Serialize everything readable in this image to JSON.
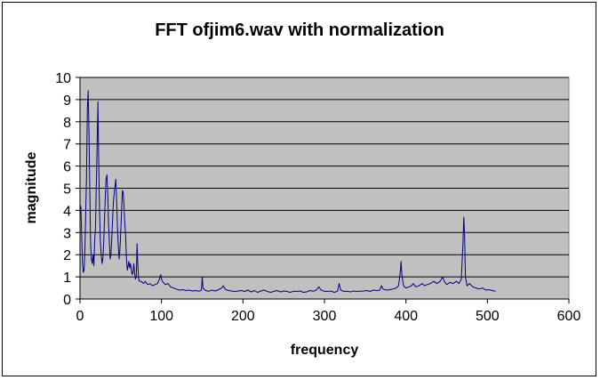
{
  "chart_data": {
    "type": "line",
    "title": "FFT ofjim6.wav with normalization",
    "xlabel": "frequency",
    "ylabel": "magnitude",
    "xlim": [
      0,
      600
    ],
    "ylim": [
      0,
      10
    ],
    "x_ticks": [
      0,
      100,
      200,
      300,
      400,
      500,
      600
    ],
    "y_ticks": [
      0,
      1,
      2,
      3,
      4,
      5,
      6,
      7,
      8,
      9,
      10
    ],
    "grid": "horizontal",
    "plot_background": "#c0c0c0",
    "series": [
      {
        "color": "#000080",
        "points": [
          [
            1,
            4.2
          ],
          [
            2,
            3.0
          ],
          [
            3,
            1.6
          ],
          [
            4,
            1.2
          ],
          [
            5,
            1.3
          ],
          [
            6,
            2.2
          ],
          [
            7,
            3.8
          ],
          [
            8,
            5.5
          ],
          [
            9,
            8.6
          ],
          [
            10,
            9.4
          ],
          [
            11,
            7.5
          ],
          [
            12,
            5.0
          ],
          [
            13,
            2.5
          ],
          [
            14,
            1.8
          ],
          [
            15,
            1.6
          ],
          [
            16,
            2.0
          ],
          [
            17,
            1.5
          ],
          [
            18,
            2.6
          ],
          [
            19,
            3.2
          ],
          [
            20,
            5.0
          ],
          [
            21,
            7.0
          ],
          [
            22,
            8.9
          ],
          [
            23,
            6.0
          ],
          [
            24,
            4.0
          ],
          [
            25,
            2.6
          ],
          [
            26,
            2.0
          ],
          [
            27,
            1.6
          ],
          [
            28,
            1.8
          ],
          [
            29,
            2.5
          ],
          [
            30,
            3.5
          ],
          [
            31,
            4.5
          ],
          [
            32,
            5.4
          ],
          [
            33,
            5.6
          ],
          [
            34,
            4.8
          ],
          [
            35,
            3.4
          ],
          [
            36,
            2.6
          ],
          [
            37,
            1.8
          ],
          [
            38,
            2.0
          ],
          [
            39,
            2.8
          ],
          [
            40,
            3.6
          ],
          [
            41,
            4.4
          ],
          [
            42,
            4.8
          ],
          [
            43,
            5.1
          ],
          [
            44,
            5.4
          ],
          [
            45,
            4.3
          ],
          [
            46,
            3.2
          ],
          [
            47,
            2.4
          ],
          [
            48,
            1.8
          ],
          [
            49,
            2.2
          ],
          [
            50,
            3.0
          ],
          [
            51,
            4.0
          ],
          [
            52,
            4.9
          ],
          [
            53,
            4.8
          ],
          [
            54,
            4.2
          ],
          [
            55,
            3.4
          ],
          [
            56,
            2.9
          ],
          [
            57,
            1.8
          ],
          [
            58,
            1.3
          ],
          [
            59,
            1.5
          ],
          [
            60,
            1.7
          ],
          [
            61,
            1.4
          ],
          [
            62,
            1.6
          ],
          [
            63,
            1.3
          ],
          [
            64,
            1.1
          ],
          [
            65,
            1.2
          ],
          [
            66,
            1.6
          ],
          [
            67,
            1.2
          ],
          [
            68,
            0.9
          ],
          [
            69,
            1.0
          ],
          [
            70,
            2.5
          ],
          [
            71,
            1.5
          ],
          [
            72,
            0.9
          ],
          [
            73,
            0.8
          ],
          [
            75,
            0.8
          ],
          [
            78,
            0.7
          ],
          [
            80,
            0.8
          ],
          [
            83,
            0.65
          ],
          [
            86,
            0.7
          ],
          [
            89,
            0.6
          ],
          [
            92,
            0.65
          ],
          [
            95,
            0.7
          ],
          [
            97,
            0.85
          ],
          [
            99,
            1.1
          ],
          [
            100,
            0.9
          ],
          [
            102,
            0.75
          ],
          [
            105,
            0.65
          ],
          [
            108,
            0.7
          ],
          [
            111,
            0.55
          ],
          [
            115,
            0.5
          ],
          [
            118,
            0.45
          ],
          [
            122,
            0.4
          ],
          [
            126,
            0.42
          ],
          [
            130,
            0.38
          ],
          [
            134,
            0.4
          ],
          [
            138,
            0.36
          ],
          [
            142,
            0.38
          ],
          [
            146,
            0.35
          ],
          [
            149,
            0.4
          ],
          [
            150,
            1.0
          ],
          [
            151,
            0.5
          ],
          [
            154,
            0.38
          ],
          [
            158,
            0.35
          ],
          [
            162,
            0.4
          ],
          [
            166,
            0.36
          ],
          [
            170,
            0.42
          ],
          [
            174,
            0.5
          ],
          [
            176,
            0.6
          ],
          [
            178,
            0.45
          ],
          [
            182,
            0.38
          ],
          [
            186,
            0.36
          ],
          [
            190,
            0.34
          ],
          [
            194,
            0.36
          ],
          [
            198,
            0.38
          ],
          [
            202,
            0.34
          ],
          [
            206,
            0.4
          ],
          [
            210,
            0.32
          ],
          [
            214,
            0.38
          ],
          [
            218,
            0.3
          ],
          [
            222,
            0.36
          ],
          [
            226,
            0.4
          ],
          [
            230,
            0.34
          ],
          [
            234,
            0.3
          ],
          [
            238,
            0.35
          ],
          [
            242,
            0.38
          ],
          [
            246,
            0.32
          ],
          [
            250,
            0.36
          ],
          [
            254,
            0.34
          ],
          [
            258,
            0.3
          ],
          [
            262,
            0.35
          ],
          [
            266,
            0.34
          ],
          [
            270,
            0.36
          ],
          [
            274,
            0.3
          ],
          [
            278,
            0.32
          ],
          [
            282,
            0.38
          ],
          [
            286,
            0.35
          ],
          [
            290,
            0.4
          ],
          [
            293,
            0.55
          ],
          [
            296,
            0.4
          ],
          [
            300,
            0.35
          ],
          [
            304,
            0.34
          ],
          [
            308,
            0.36
          ],
          [
            312,
            0.3
          ],
          [
            316,
            0.35
          ],
          [
            318,
            0.7
          ],
          [
            320,
            0.4
          ],
          [
            324,
            0.34
          ],
          [
            328,
            0.35
          ],
          [
            332,
            0.32
          ],
          [
            336,
            0.36
          ],
          [
            340,
            0.34
          ],
          [
            344,
            0.35
          ],
          [
            348,
            0.36
          ],
          [
            352,
            0.38
          ],
          [
            356,
            0.34
          ],
          [
            360,
            0.4
          ],
          [
            364,
            0.38
          ],
          [
            368,
            0.4
          ],
          [
            370,
            0.6
          ],
          [
            372,
            0.45
          ],
          [
            376,
            0.4
          ],
          [
            380,
            0.42
          ],
          [
            384,
            0.45
          ],
          [
            388,
            0.5
          ],
          [
            391,
            0.6
          ],
          [
            393,
            1.2
          ],
          [
            394,
            1.7
          ],
          [
            395,
            1.1
          ],
          [
            397,
            0.6
          ],
          [
            400,
            0.5
          ],
          [
            404,
            0.55
          ],
          [
            407,
            0.6
          ],
          [
            409,
            0.7
          ],
          [
            412,
            0.55
          ],
          [
            416,
            0.6
          ],
          [
            420,
            0.7
          ],
          [
            423,
            0.6
          ],
          [
            426,
            0.65
          ],
          [
            430,
            0.7
          ],
          [
            434,
            0.8
          ],
          [
            438,
            0.7
          ],
          [
            442,
            0.8
          ],
          [
            445,
            1.0
          ],
          [
            447,
            0.8
          ],
          [
            450,
            0.65
          ],
          [
            454,
            0.75
          ],
          [
            458,
            0.7
          ],
          [
            462,
            0.8
          ],
          [
            465,
            0.7
          ],
          [
            468,
            0.9
          ],
          [
            470,
            2.5
          ],
          [
            471,
            3.7
          ],
          [
            472,
            2.8
          ],
          [
            473,
            1.0
          ],
          [
            475,
            0.6
          ],
          [
            478,
            0.7
          ],
          [
            482,
            0.55
          ],
          [
            486,
            0.5
          ],
          [
            490,
            0.45
          ],
          [
            494,
            0.5
          ],
          [
            498,
            0.4
          ],
          [
            502,
            0.42
          ],
          [
            506,
            0.38
          ],
          [
            510,
            0.35
          ]
        ]
      }
    ]
  }
}
